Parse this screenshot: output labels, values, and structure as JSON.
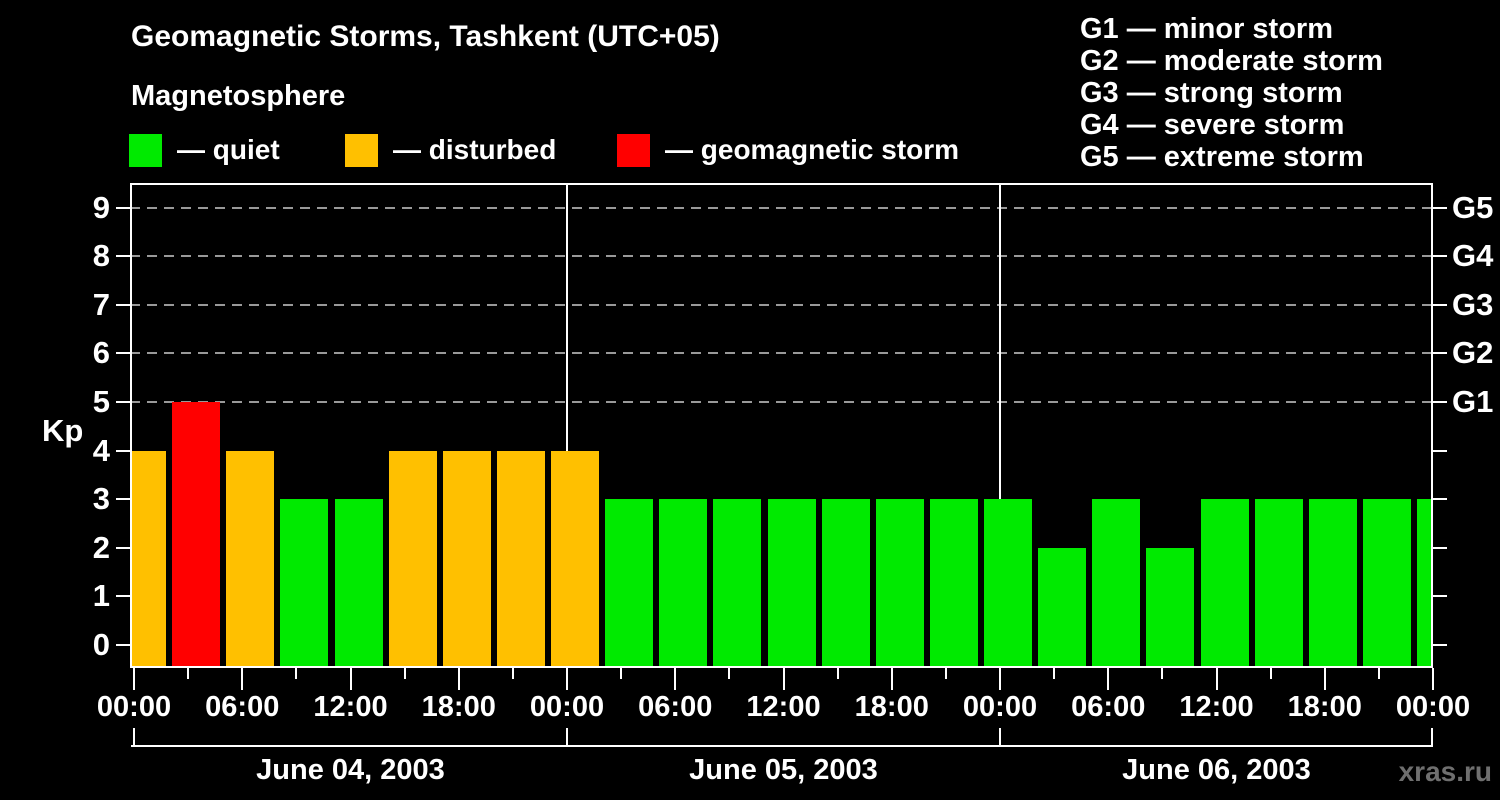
{
  "title": "Geomagnetic Storms, Tashkent (UTC+05)",
  "subtitle": "Magnetosphere",
  "legend": [
    {
      "name": "quiet",
      "color": "#00ea00",
      "label": "— quiet"
    },
    {
      "name": "disturbed",
      "color": "#ffc000",
      "label": "— disturbed"
    },
    {
      "name": "storm",
      "color": "#ff0000",
      "label": "— geomagnetic storm"
    }
  ],
  "g_scale": [
    "G1 — minor storm",
    "G2 — moderate storm",
    "G3 — strong storm",
    "G4 — severe storm",
    "G5 — extreme storm"
  ],
  "watermark": "xras.ru",
  "chart_data": {
    "type": "bar",
    "title": "Geomagnetic Storms, Tashkent (UTC+05)",
    "subtitle": "Magnetosphere",
    "ylabel": "Kp",
    "ylim": [
      0,
      9
    ],
    "y_ticks": [
      "0",
      "1",
      "2",
      "3",
      "4",
      "5",
      "6",
      "7",
      "8",
      "9"
    ],
    "gridlines_at_kp": [
      5,
      6,
      7,
      8,
      9
    ],
    "grid": "dashed horizontal lines only at Kp 5-9",
    "right_axis": [
      {
        "kp": 5,
        "label": "G1"
      },
      {
        "kp": 6,
        "label": "G2"
      },
      {
        "kp": 7,
        "label": "G3"
      },
      {
        "kp": 8,
        "label": "G4"
      },
      {
        "kp": 9,
        "label": "G5"
      }
    ],
    "x_minor_tick_hours": 3,
    "x_major_tick_hours": 6,
    "x_tick_labels": [
      "00:00",
      "06:00",
      "12:00",
      "18:00",
      "00:00",
      "06:00",
      "12:00",
      "18:00",
      "00:00",
      "06:00",
      "12:00",
      "18:00",
      "00:00"
    ],
    "days": [
      {
        "date": "June 04, 2003",
        "kp_3h_values": [
          4,
          5,
          4,
          3,
          3,
          4,
          4,
          4
        ]
      },
      {
        "date": "June 05, 2003",
        "kp_3h_values": [
          4,
          3,
          3,
          3,
          3,
          3,
          3,
          3
        ]
      },
      {
        "date": "June 06, 2003",
        "kp_3h_values": [
          3,
          2,
          3,
          2,
          3,
          3,
          3,
          3
        ]
      }
    ],
    "next_day_partial_value": 3,
    "color_rule": {
      "quiet_max_kp": 3,
      "disturbed_kp": 4,
      "storm_min_kp": 5
    },
    "colors": {
      "quiet": "#00ea00",
      "disturbed": "#ffc000",
      "storm": "#ff0000"
    },
    "background": "#000000",
    "gridline_color": "#999999"
  }
}
